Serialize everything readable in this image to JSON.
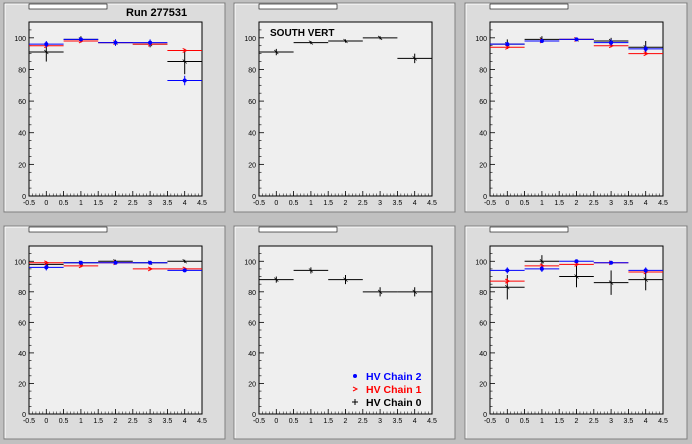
{
  "header": {
    "run_label": "Run 277531"
  },
  "colors": {
    "chain2": "#0000ff",
    "chain1": "#ff0000",
    "chain0": "#000000",
    "pad_bg": "#efefef",
    "canvas_bg": "#c0c0c0"
  },
  "legend": {
    "placement": "bottom-right of middle bottom panel",
    "entries": [
      {
        "label": "HV Chain 2",
        "color_key": "chain2"
      },
      {
        "label": "HV Chain 1",
        "color_key": "chain1"
      },
      {
        "label": "HV Chain 0",
        "color_key": "chain0"
      }
    ]
  },
  "chart_data": [
    {
      "type": "scatter",
      "title": "",
      "xlim": [
        -0.5,
        4.5
      ],
      "ylim": [
        0,
        110
      ],
      "xticks": [
        "-0.5",
        "0",
        "0.5",
        "1",
        "1.5",
        "2",
        "2.5",
        "3",
        "3.5",
        "4",
        "4.5"
      ],
      "yticks": [
        "0",
        "20",
        "40",
        "60",
        "80",
        "100"
      ],
      "series": [
        {
          "key": "chain0",
          "x": [
            0,
            1,
            2,
            3,
            4
          ],
          "y": [
            91,
            99,
            97,
            96,
            85
          ],
          "yerr": [
            6,
            2,
            2,
            2,
            8
          ]
        },
        {
          "key": "chain1",
          "x": [
            0,
            1,
            2,
            3,
            4
          ],
          "y": [
            95,
            98,
            97,
            96,
            92
          ],
          "yerr": [
            1,
            1,
            1,
            1,
            1
          ]
        },
        {
          "key": "chain2",
          "x": [
            0,
            1,
            2,
            3,
            4
          ],
          "y": [
            96,
            99,
            97,
            97,
            73
          ],
          "yerr": [
            2,
            1,
            2,
            2,
            3
          ]
        }
      ]
    },
    {
      "type": "scatter",
      "title": "",
      "annotation": "SOUTH VERT",
      "xlim": [
        -0.5,
        4.5
      ],
      "ylim": [
        0,
        110
      ],
      "xticks": [
        "-0.5",
        "0",
        "0.5",
        "1",
        "1.5",
        "2",
        "2.5",
        "3",
        "3.5",
        "4",
        "4.5"
      ],
      "yticks": [
        "0",
        "20",
        "40",
        "60",
        "80",
        "100"
      ],
      "series": [
        {
          "key": "chain0",
          "x": [
            0,
            1,
            2,
            3,
            4
          ],
          "y": [
            91,
            97,
            98,
            100,
            87
          ],
          "yerr": [
            2,
            1,
            1,
            1,
            3
          ]
        }
      ]
    },
    {
      "type": "scatter",
      "title": "",
      "xlim": [
        -0.5,
        4.5
      ],
      "ylim": [
        0,
        110
      ],
      "xticks": [
        "-0.5",
        "0",
        "0.5",
        "1",
        "1.5",
        "2",
        "2.5",
        "3",
        "3.5",
        "4",
        "4.5"
      ],
      "yticks": [
        "0",
        "20",
        "40",
        "60",
        "80",
        "100"
      ],
      "series": [
        {
          "key": "chain0",
          "x": [
            0,
            1,
            2,
            3,
            4
          ],
          "y": [
            96,
            99,
            99,
            98,
            94
          ],
          "yerr": [
            3,
            2,
            1,
            2,
            4
          ]
        },
        {
          "key": "chain1",
          "x": [
            0,
            1,
            2,
            3,
            4
          ],
          "y": [
            94,
            98,
            99,
            95,
            90
          ],
          "yerr": [
            1,
            1,
            1,
            1,
            1
          ]
        },
        {
          "key": "chain2",
          "x": [
            0,
            1,
            2,
            3,
            4
          ],
          "y": [
            96,
            98,
            99,
            97,
            93
          ],
          "yerr": [
            1,
            1,
            1,
            2,
            2
          ]
        }
      ]
    },
    {
      "type": "scatter",
      "title": "",
      "xlim": [
        -0.5,
        4.5
      ],
      "ylim": [
        0,
        110
      ],
      "xticks": [
        "-0.5",
        "0",
        "0.5",
        "1",
        "1.5",
        "2",
        "2.5",
        "3",
        "3.5",
        "4",
        "4.5"
      ],
      "yticks": [
        "0",
        "20",
        "40",
        "60",
        "80",
        "100"
      ],
      "series": [
        {
          "key": "chain0",
          "x": [
            0,
            1,
            2,
            3,
            4
          ],
          "y": [
            98,
            99,
            100,
            99,
            100
          ],
          "yerr": [
            1,
            1,
            1,
            1,
            1
          ]
        },
        {
          "key": "chain1",
          "x": [
            0,
            1,
            2,
            3,
            4
          ],
          "y": [
            99,
            97,
            99,
            95,
            95
          ],
          "yerr": [
            1,
            1,
            1,
            1,
            1
          ]
        },
        {
          "key": "chain2",
          "x": [
            0,
            1,
            2,
            3,
            4
          ],
          "y": [
            96,
            99,
            99,
            99,
            94
          ],
          "yerr": [
            2,
            1,
            1,
            1,
            1
          ]
        }
      ]
    },
    {
      "type": "scatter",
      "title": "",
      "xlim": [
        -0.5,
        4.5
      ],
      "ylim": [
        0,
        110
      ],
      "xticks": [
        "-0.5",
        "0",
        "0.5",
        "1",
        "1.5",
        "2",
        "2.5",
        "3",
        "3.5",
        "4",
        "4.5"
      ],
      "yticks": [
        "0",
        "20",
        "40",
        "60",
        "80",
        "100"
      ],
      "series": [
        {
          "key": "chain0",
          "x": [
            0,
            1,
            2,
            3,
            4
          ],
          "y": [
            88,
            94,
            88,
            80,
            80
          ],
          "yerr": [
            2,
            2,
            3,
            3,
            3
          ]
        }
      ]
    },
    {
      "type": "scatter",
      "title": "",
      "xlim": [
        -0.5,
        4.5
      ],
      "ylim": [
        0,
        110
      ],
      "xticks": [
        "-0.5",
        "0",
        "0.5",
        "1",
        "1.5",
        "2",
        "2.5",
        "3",
        "3.5",
        "4",
        "4.5"
      ],
      "yticks": [
        "0",
        "20",
        "40",
        "60",
        "80",
        "100"
      ],
      "series": [
        {
          "key": "chain0",
          "x": [
            0,
            1,
            2,
            3,
            4
          ],
          "y": [
            83,
            100,
            90,
            86,
            88
          ],
          "yerr": [
            8,
            4,
            7,
            8,
            7
          ]
        },
        {
          "key": "chain1",
          "x": [
            0,
            1,
            2,
            3,
            4
          ],
          "y": [
            87,
            97,
            98,
            99,
            93
          ],
          "yerr": [
            2,
            1,
            1,
            1,
            1
          ]
        },
        {
          "key": "chain2",
          "x": [
            0,
            1,
            2,
            3,
            4
          ],
          "y": [
            94,
            95,
            100,
            99,
            94
          ],
          "yerr": [
            2,
            2,
            1,
            1,
            2
          ]
        }
      ]
    }
  ]
}
